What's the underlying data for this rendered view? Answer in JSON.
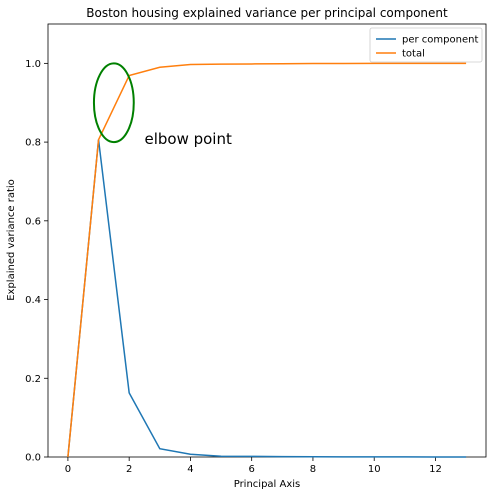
{
  "chart_data": {
    "type": "line",
    "title": "Boston housing explained variance per principal component",
    "xlabel": "Principal Axis",
    "ylabel": "Explained variance ratio",
    "xlim": [
      -0.65,
      13.65
    ],
    "ylim": [
      0,
      1.1
    ],
    "xticks": [
      0,
      2,
      4,
      6,
      8,
      10,
      12
    ],
    "xtick_labels": [
      "0",
      "2",
      "4",
      "6",
      "8",
      "10",
      "12"
    ],
    "yticks": [
      0.0,
      0.2,
      0.4,
      0.6,
      0.8,
      1.0
    ],
    "ytick_labels": [
      "0.0",
      "0.2",
      "0.4",
      "0.6",
      "0.8",
      "1.0"
    ],
    "grid": false,
    "legend_position": "top-right",
    "series": [
      {
        "name": "per component",
        "color": "#1f77b4",
        "x": [
          0,
          1,
          2,
          3,
          4,
          5,
          6,
          7,
          8,
          9,
          10,
          11,
          12,
          13
        ],
        "values": [
          0.0,
          0.806,
          0.163,
          0.021,
          0.007,
          0.002,
          0.0015,
          0.001,
          0.0007,
          0.0004,
          0.0003,
          0.0002,
          0.0001,
          0.0001
        ]
      },
      {
        "name": "total",
        "color": "#ff7f0e",
        "x": [
          0,
          1,
          2,
          3,
          4,
          5,
          6,
          7,
          8,
          9,
          10,
          11,
          12,
          13
        ],
        "values": [
          0.0,
          0.806,
          0.969,
          0.99,
          0.997,
          0.998,
          0.9985,
          0.999,
          0.9995,
          0.9998,
          0.9999,
          0.9999,
          1.0,
          1.0
        ]
      }
    ],
    "annotation": {
      "text": "elbow point",
      "x": 2.5,
      "y": 0.8
    },
    "highlight_circle": {
      "cx": 1.5,
      "cy": 0.9,
      "rx": 1.3,
      "ry": 0.1,
      "color": "#008000"
    }
  }
}
